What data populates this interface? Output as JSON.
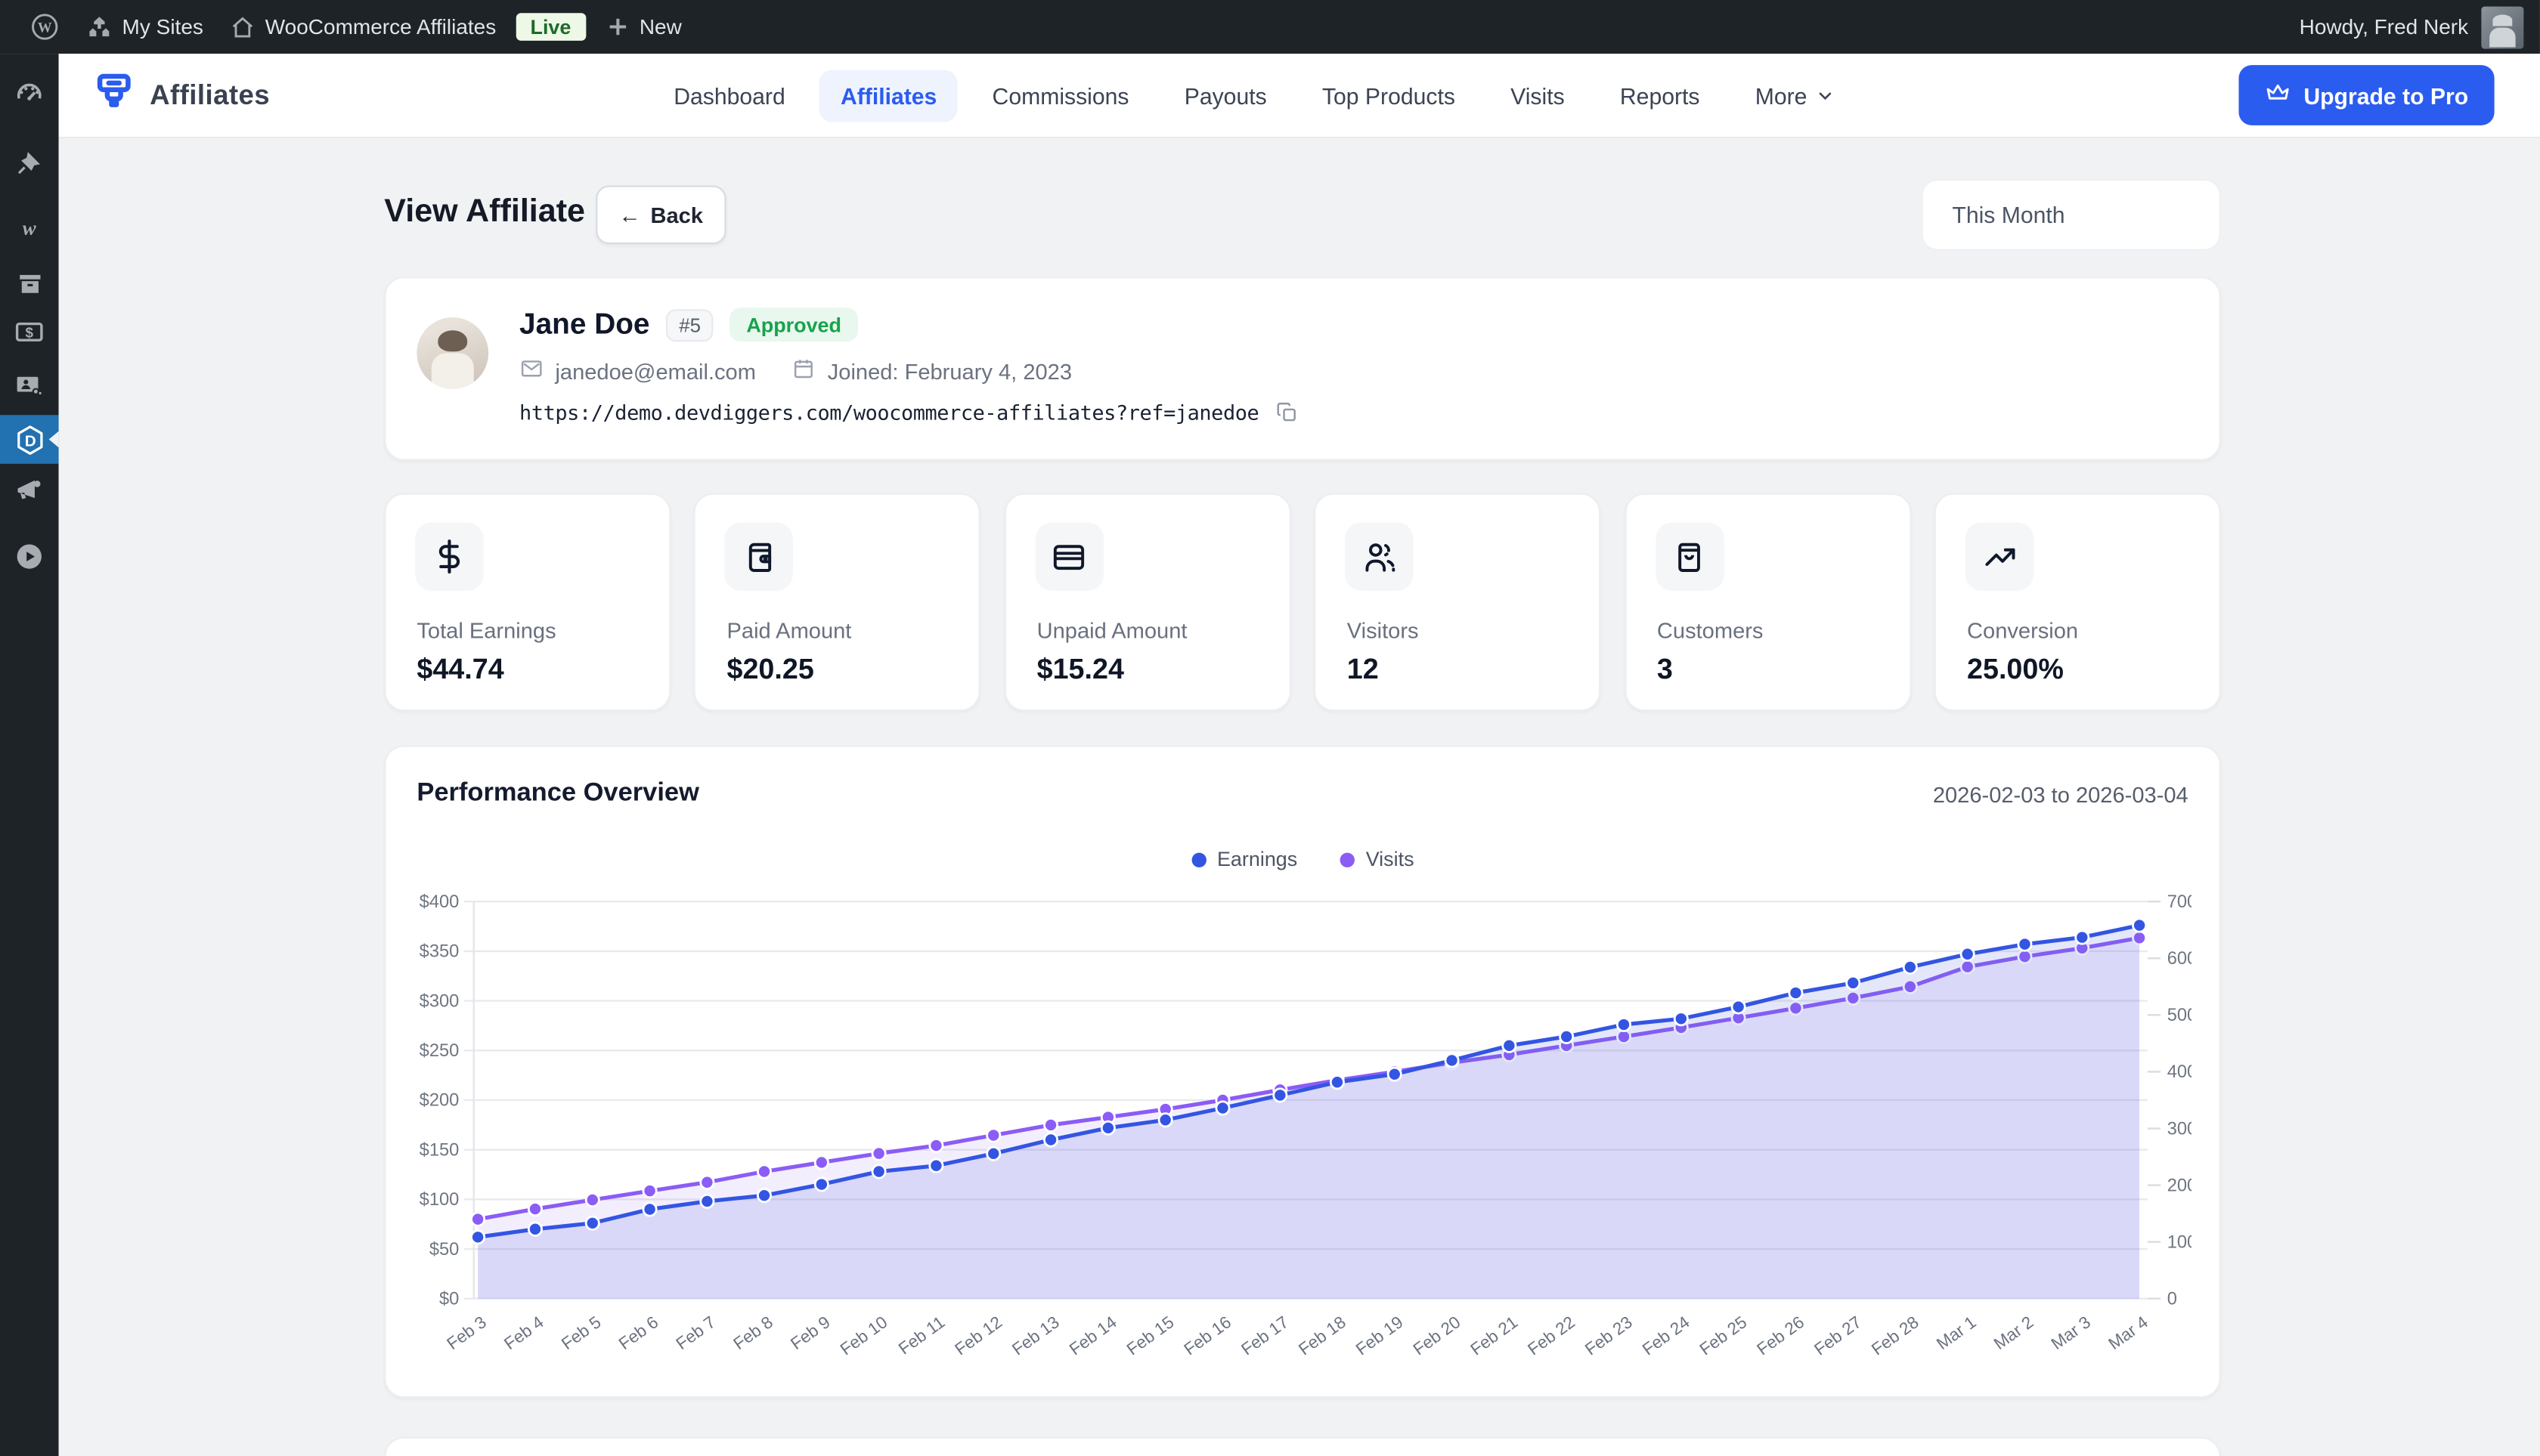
{
  "colors": {
    "accent": "#2b5cf0",
    "admin_bar_bg": "#1d2327",
    "sidebar_active_bg": "#2271b1",
    "live_bg": "#edf8e7",
    "live_text": "#1e6b26",
    "approved_bg": "#e9f8ef",
    "approved_text": "#17a34a",
    "earnings_line": "#3355e2",
    "visits_line": "#8b5cf6",
    "earnings_fill": "rgba(85,105,225,0.16)",
    "visits_fill": "rgba(139,92,246,0.10)",
    "grid_line": "#e8eaee",
    "axis_text": "#6f7680"
  },
  "admin_bar": {
    "my_sites": "My Sites",
    "site_name": "WooCommerce Affiliates",
    "live_badge": "Live",
    "new_label": "New",
    "howdy": "Howdy, Fred Nerk"
  },
  "sidebar": {
    "items": [
      {
        "name": "dashboard",
        "icon": "gauge",
        "active": false
      },
      {
        "name": "posts",
        "icon": "pin",
        "active": false
      },
      {
        "name": "w-site",
        "icon": "w-letter",
        "active": false
      },
      {
        "name": "archive",
        "icon": "archive",
        "active": false
      },
      {
        "name": "payments",
        "icon": "banknote",
        "active": false
      },
      {
        "name": "media-users",
        "icon": "media-user",
        "active": false
      },
      {
        "name": "woocommerce-affiliates",
        "icon": "dd-logo",
        "active": true
      },
      {
        "name": "marketing",
        "icon": "megaphone",
        "active": false
      },
      {
        "name": "videos",
        "icon": "play-circle",
        "active": false
      }
    ]
  },
  "header": {
    "brand": "Affiliates",
    "nav": [
      {
        "label": "Dashboard",
        "active": false
      },
      {
        "label": "Affiliates",
        "active": true
      },
      {
        "label": "Commissions",
        "active": false
      },
      {
        "label": "Payouts",
        "active": false
      },
      {
        "label": "Top Products",
        "active": false
      },
      {
        "label": "Visits",
        "active": false
      },
      {
        "label": "Reports",
        "active": false
      },
      {
        "label": "More",
        "active": false,
        "caret": true
      }
    ],
    "upgrade_label": "Upgrade to Pro"
  },
  "page": {
    "title": "View Affiliate",
    "back_label": "Back",
    "back_arrow": "←",
    "period_filter": "This Month"
  },
  "profile": {
    "name": "Jane Doe",
    "id_badge": "#5",
    "status": "Approved",
    "email": "janedoe@email.com",
    "joined": "Joined: February 4, 2023",
    "referral_url": "https://demo.devdiggers.com/woocommerce-affiliates?ref=janedoe"
  },
  "stats": {
    "cards": [
      {
        "label": "Total Earnings",
        "value": "$44.74",
        "icon": "dollar-sign"
      },
      {
        "label": "Paid Amount",
        "value": "$20.25",
        "icon": "wallet"
      },
      {
        "label": "Unpaid Amount",
        "value": "$15.24",
        "icon": "credit-card"
      },
      {
        "label": "Visitors",
        "value": "12",
        "icon": "users"
      },
      {
        "label": "Customers",
        "value": "3",
        "icon": "shopping-bag"
      },
      {
        "label": "Conversion",
        "value": "25.00%",
        "icon": "trending-up"
      }
    ]
  },
  "chart_data": {
    "type": "line",
    "title": "Performance Overview",
    "date_range": "2026-02-03 to 2026-03-04",
    "legend_position": "top",
    "grid": true,
    "x": [
      "Feb 3",
      "Feb 4",
      "Feb 5",
      "Feb 6",
      "Feb 7",
      "Feb 8",
      "Feb 9",
      "Feb 10",
      "Feb 11",
      "Feb 12",
      "Feb 13",
      "Feb 14",
      "Feb 15",
      "Feb 16",
      "Feb 17",
      "Feb 18",
      "Feb 19",
      "Feb 20",
      "Feb 21",
      "Feb 22",
      "Feb 23",
      "Feb 24",
      "Feb 25",
      "Feb 26",
      "Feb 27",
      "Feb 28",
      "Mar 1",
      "Mar 2",
      "Mar 3",
      "Mar 4"
    ],
    "series": [
      {
        "name": "Earnings",
        "axis": "left",
        "color": "#3355e2",
        "fill": "rgba(85,105,225,0.16)",
        "values": [
          62,
          70,
          76,
          90,
          98,
          104,
          115,
          128,
          134,
          146,
          160,
          172,
          180,
          192,
          205,
          218,
          226,
          240,
          255,
          264,
          276,
          282,
          294,
          308,
          318,
          334,
          347,
          357,
          364,
          376
        ]
      },
      {
        "name": "Visits",
        "axis": "right",
        "color": "#8b5cf6",
        "fill": "rgba(139,92,246,0.10)",
        "values": [
          140,
          158,
          174,
          190,
          205,
          224,
          240,
          256,
          270,
          288,
          306,
          320,
          334,
          350,
          368,
          385,
          400,
          416,
          430,
          446,
          462,
          478,
          495,
          512,
          530,
          550,
          585,
          603,
          618,
          636
        ]
      }
    ],
    "y_left": {
      "min": 0,
      "max": 400,
      "ticks": [
        "$400",
        "$350",
        "$300",
        "$250",
        "$200",
        "$150",
        "$100",
        "$50",
        "$0"
      ]
    },
    "y_right": {
      "min": 0,
      "max": 700,
      "ticks": [
        "700",
        "600",
        "500",
        "400",
        "300",
        "200",
        "100",
        "0"
      ]
    }
  }
}
